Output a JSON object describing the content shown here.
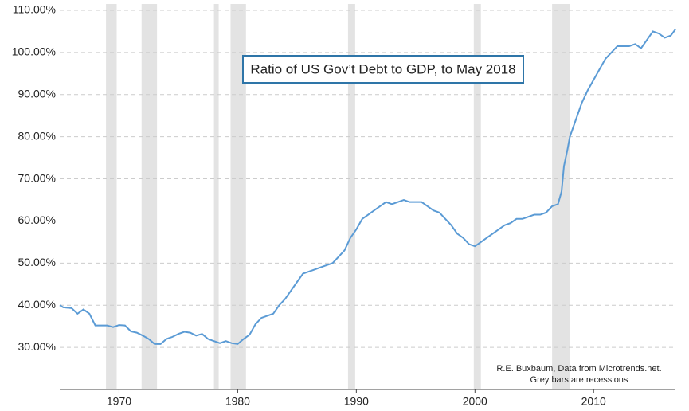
{
  "chart_data": {
    "type": "line",
    "title": "Ratio of US Gov’t Debt to GDP, to May 2018",
    "notes": [
      "R.E. Buxbaum, Data from Microtrends.net.",
      "Grey bars are recessions"
    ],
    "x": [
      1965.0,
      1965.3,
      1966,
      1966.5,
      1967,
      1967.5,
      1968,
      1969,
      1969.5,
      1970,
      1970.5,
      1971,
      1971.5,
      1972,
      1972.5,
      1973,
      1973.5,
      1974,
      1974.5,
      1975,
      1975.5,
      1976,
      1976.5,
      1977,
      1977.5,
      1978,
      1978.5,
      1979,
      1979.5,
      1980,
      1980.5,
      1981,
      1981.5,
      1982,
      1982.5,
      1983,
      1983.5,
      1984,
      1984.5,
      1985,
      1985.5,
      1986,
      1986.5,
      1987,
      1987.5,
      1988,
      1988.5,
      1989,
      1989.5,
      1990,
      1990.5,
      1991,
      1991.5,
      1992,
      1992.5,
      1993,
      1993.5,
      1994,
      1994.5,
      1995,
      1995.5,
      1996,
      1996.5,
      1997,
      1997.5,
      1998,
      1998.5,
      1999,
      1999.5,
      2000,
      2000.5,
      2001,
      2001.5,
      2002,
      2002.5,
      2003,
      2003.5,
      2004,
      2004.5,
      2005,
      2005.5,
      2006,
      2006.5,
      2007,
      2007.3,
      2007.5,
      2007.8,
      2008,
      2008.5,
      2009,
      2009.5,
      2010,
      2010.5,
      2011,
      2011.5,
      2012,
      2012.5,
      2013,
      2013.5,
      2014,
      2014.5,
      2015,
      2015.5,
      2016,
      2016.5,
      2016.9
    ],
    "values": [
      40,
      39.5,
      39.3,
      38,
      39,
      38,
      35.2,
      35.2,
      34.8,
      35.3,
      35.2,
      33.8,
      33.5,
      32.8,
      32,
      30.8,
      30.8,
      32,
      32.5,
      33.2,
      33.7,
      33.5,
      32.8,
      33.2,
      32,
      31.5,
      31,
      31.5,
      31,
      30.8,
      32,
      33,
      35.5,
      37,
      37.5,
      38,
      40,
      41.5,
      43.5,
      45.5,
      47.5,
      48,
      48.5,
      49,
      49.5,
      50,
      51.5,
      53,
      56,
      58,
      60.5,
      61.5,
      62.5,
      63.5,
      64.5,
      64,
      64.5,
      65,
      64.5,
      64.5,
      64.5,
      63.5,
      62.5,
      62,
      60.5,
      59,
      57,
      56,
      54.5,
      54,
      55,
      56,
      57,
      58,
      59,
      59.5,
      60.5,
      60.5,
      61,
      61.5,
      61.5,
      62,
      63.5,
      64,
      67,
      73,
      77,
      80,
      84,
      88,
      91,
      93.5,
      96,
      98.5,
      100,
      101.5,
      101.5,
      101.5,
      102,
      101,
      103,
      105,
      104.5,
      103.5,
      104,
      105.5
    ],
    "color": "#5b9bd5",
    "recessions": [
      [
        1968.9,
        1969.8
      ],
      [
        1971.9,
        1973.2
      ],
      [
        1978.0,
        1978.4
      ],
      [
        1979.4,
        1980.7
      ],
      [
        1989.3,
        1989.9
      ],
      [
        1999.9,
        2000.5
      ],
      [
        2006.5,
        2008.0
      ]
    ],
    "xlim": [
      1965,
      2016.9
    ],
    "xticks": [
      1970,
      1980,
      1990,
      2000,
      2010
    ],
    "ylim": [
      20,
      110
    ],
    "yticks": [
      {
        "value": 30,
        "label": "30.00%"
      },
      {
        "value": 40,
        "label": "40.00%"
      },
      {
        "value": 50,
        "label": "50.00%"
      },
      {
        "value": 60,
        "label": "60.00%"
      },
      {
        "value": 70,
        "label": "70.00%"
      },
      {
        "value": 80,
        "label": "80.00%"
      },
      {
        "value": 90,
        "label": "90.00%"
      },
      {
        "value": 100,
        "label": "100.00%"
      },
      {
        "value": 110,
        "label": "110.00%"
      }
    ],
    "grid": true
  }
}
